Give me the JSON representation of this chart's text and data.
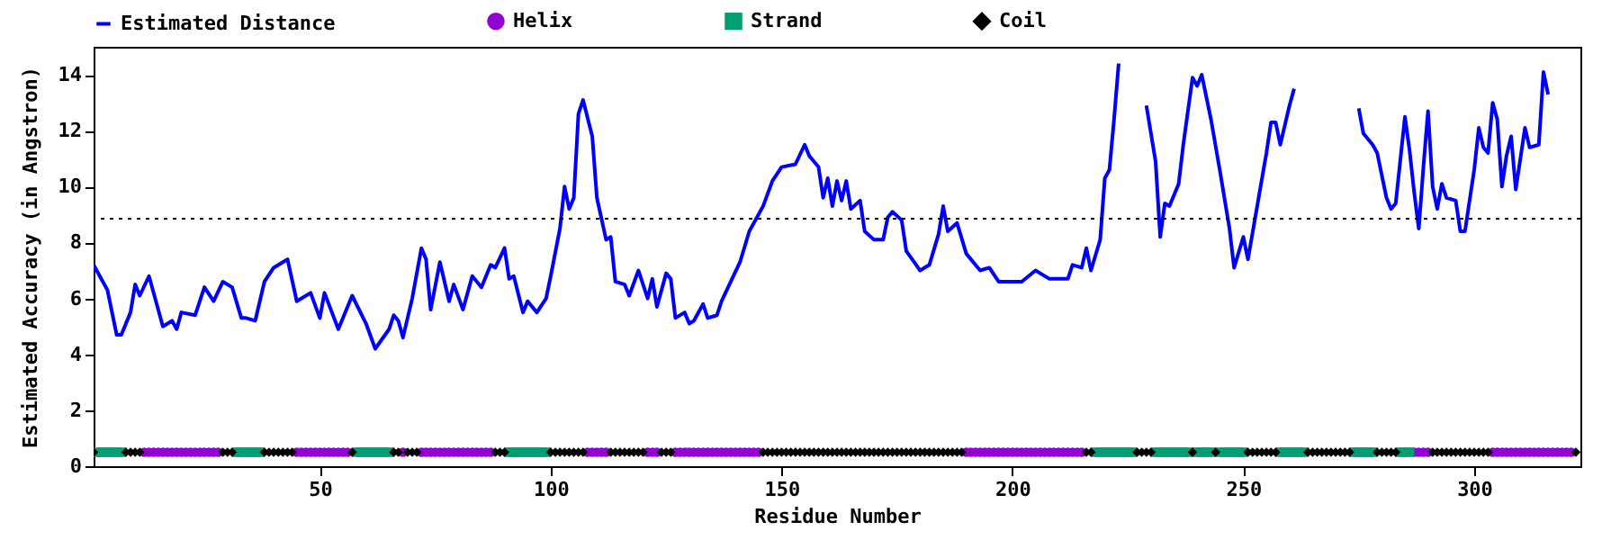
{
  "chart_data": {
    "type": "line",
    "xlabel": "Residue Number",
    "ylabel": "Estimated Accuracy (in Angstron)",
    "xlim": [
      1,
      323
    ],
    "xticks": [
      50,
      100,
      150,
      200,
      250,
      300
    ],
    "ylim": [
      0,
      15
    ],
    "yticks": [
      0,
      2,
      4,
      6,
      8,
      10,
      12,
      14
    ],
    "grid": false,
    "legend": "top",
    "ref_lines": [
      {
        "axis": "y",
        "value": 8.85,
        "color": "#000000",
        "line_style": "dotted"
      }
    ],
    "series": [
      {
        "name": "Estimated Distance",
        "type": "line",
        "color": "#0000ff",
        "line_style": "solid",
        "marker": "none",
        "x": [
          1,
          3,
          4,
          6,
          7,
          9,
          10,
          11,
          13,
          16,
          18,
          19,
          20,
          23,
          25,
          27,
          29,
          31,
          33,
          34,
          36,
          38,
          40,
          42,
          43,
          45,
          48,
          50,
          51,
          54,
          57,
          60,
          62,
          65,
          66,
          67,
          68,
          70,
          72,
          73,
          74,
          76,
          78,
          79,
          81,
          83,
          85,
          87,
          88,
          90,
          91,
          92,
          94,
          95,
          97,
          99,
          100,
          102,
          103,
          104,
          105,
          106,
          107,
          109,
          110,
          112,
          113,
          114,
          116,
          117,
          119,
          121,
          122,
          123,
          125,
          126,
          127,
          129,
          130,
          131,
          133,
          134,
          136,
          137,
          139,
          141,
          143,
          146,
          148,
          150,
          153,
          155,
          156,
          158,
          159,
          160,
          161,
          162,
          163,
          164,
          165,
          167,
          168,
          170,
          172,
          173,
          174,
          176,
          177,
          180,
          182,
          184,
          185,
          186,
          188,
          190,
          193,
          195,
          197,
          200,
          202,
          205,
          208,
          212,
          213,
          215,
          216,
          217,
          219,
          220,
          221,
          222,
          223,
          224,
          226,
          228,
          229,
          231,
          232,
          233,
          234,
          236,
          237,
          239,
          240,
          241,
          243,
          245,
          247,
          248,
          250,
          251,
          253,
          255,
          256,
          257,
          258,
          260,
          261,
          262,
          268,
          274,
          275,
          276,
          278,
          279,
          281,
          282,
          283,
          285,
          286,
          287,
          288,
          289,
          290,
          291,
          292,
          293,
          294,
          296,
          297,
          298,
          300,
          301,
          302,
          303,
          304,
          305,
          306,
          307,
          308,
          309,
          311,
          312,
          314,
          315,
          316
        ],
        "values": [
          7.2,
          6.6,
          6.3,
          4.7,
          4.7,
          5.5,
          6.5,
          6.1,
          6.8,
          5.0,
          5.2,
          4.9,
          5.5,
          5.4,
          6.4,
          5.9,
          6.6,
          6.4,
          5.3,
          5.3,
          5.2,
          6.6,
          7.1,
          7.3,
          7.4,
          5.9,
          6.2,
          5.3,
          6.2,
          4.9,
          6.1,
          5.1,
          4.2,
          4.9,
          5.4,
          5.2,
          4.6,
          6.0,
          7.8,
          7.4,
          5.6,
          7.3,
          5.9,
          6.5,
          5.6,
          6.8,
          6.4,
          7.2,
          7.1,
          7.8,
          6.7,
          6.8,
          5.5,
          5.9,
          5.5,
          6.0,
          6.8,
          8.5,
          10.0,
          9.2,
          9.6,
          12.6,
          13.1,
          11.8,
          9.6,
          8.1,
          8.2,
          6.6,
          6.5,
          6.1,
          7.0,
          6.0,
          6.7,
          5.7,
          6.9,
          6.7,
          5.3,
          5.5,
          5.1,
          5.2,
          5.8,
          5.3,
          5.4,
          5.9,
          6.6,
          7.3,
          8.4,
          9.3,
          10.2,
          10.7,
          10.8,
          11.5,
          11.1,
          10.7,
          9.6,
          10.3,
          9.3,
          10.2,
          9.5,
          10.2,
          9.2,
          9.5,
          8.4,
          8.1,
          8.1,
          8.9,
          9.1,
          8.8,
          7.7,
          7.0,
          7.2,
          8.3,
          9.3,
          8.4,
          8.7,
          7.6,
          7.0,
          7.1,
          6.6,
          6.6,
          6.6,
          7.0,
          6.7,
          6.7,
          7.2,
          7.1,
          7.8,
          7.0,
          8.1,
          10.3,
          10.6,
          12.4,
          14.4,
          null,
          null,
          null,
          12.9,
          10.9,
          8.2,
          9.4,
          9.3,
          10.1,
          11.5,
          13.9,
          13.6,
          14.0,
          12.4,
          10.5,
          8.5,
          7.1,
          8.2,
          7.4,
          9.3,
          11.2,
          12.3,
          12.3,
          11.5,
          12.9,
          13.5,
          null,
          null,
          null,
          12.8,
          11.9,
          11.5,
          11.2,
          9.6,
          9.2,
          9.4,
          12.5,
          11.3,
          9.8,
          8.5,
          10.7,
          12.7,
          10.0,
          9.2,
          10.1,
          9.6,
          9.5,
          8.4,
          8.4,
          10.6,
          12.1,
          11.4,
          11.2,
          13.0,
          12.4,
          10.0,
          11.1,
          11.8,
          9.9,
          12.1,
          11.4,
          11.5,
          14.1,
          13.3
        ]
      },
      {
        "name": "Helix",
        "type": "scatter",
        "color": "#9400d3",
        "marker": "circle",
        "x": [
          12,
          13,
          14,
          15,
          16,
          17,
          18,
          19,
          20,
          21,
          22,
          23,
          24,
          25,
          26,
          27,
          28,
          45,
          46,
          47,
          48,
          49,
          50,
          51,
          52,
          53,
          54,
          55,
          56,
          68,
          72,
          73,
          74,
          75,
          76,
          77,
          78,
          79,
          80,
          81,
          82,
          83,
          84,
          85,
          86,
          87,
          108,
          109,
          110,
          111,
          112,
          121,
          122,
          123,
          127,
          128,
          129,
          130,
          131,
          132,
          133,
          134,
          135,
          136,
          137,
          138,
          139,
          140,
          141,
          142,
          143,
          144,
          145,
          190,
          191,
          192,
          193,
          194,
          195,
          196,
          197,
          198,
          199,
          200,
          201,
          202,
          203,
          204,
          205,
          206,
          207,
          208,
          209,
          210,
          211,
          212,
          213,
          214,
          215,
          287,
          288,
          289,
          290,
          304,
          305,
          306,
          307,
          308,
          309,
          310,
          311,
          312,
          313,
          314,
          315,
          316,
          317,
          318,
          319,
          320,
          321
        ],
        "values": [
          0.5,
          0.5,
          0.5,
          0.5,
          0.5,
          0.5,
          0.5,
          0.5,
          0.5,
          0.5,
          0.5,
          0.5,
          0.5,
          0.5,
          0.5,
          0.5,
          0.5,
          0.5,
          0.5,
          0.5,
          0.5,
          0.5,
          0.5,
          0.5,
          0.5,
          0.5,
          0.5,
          0.5,
          0.5,
          0.5,
          0.5,
          0.5,
          0.5,
          0.5,
          0.5,
          0.5,
          0.5,
          0.5,
          0.5,
          0.5,
          0.5,
          0.5,
          0.5,
          0.5,
          0.5,
          0.5,
          0.5,
          0.5,
          0.5,
          0.5,
          0.5,
          0.5,
          0.5,
          0.5,
          0.5,
          0.5,
          0.5,
          0.5,
          0.5,
          0.5,
          0.5,
          0.5,
          0.5,
          0.5,
          0.5,
          0.5,
          0.5,
          0.5,
          0.5,
          0.5,
          0.5,
          0.5,
          0.5,
          0.5,
          0.5,
          0.5,
          0.5,
          0.5,
          0.5,
          0.5,
          0.5,
          0.5,
          0.5,
          0.5,
          0.5,
          0.5,
          0.5,
          0.5,
          0.5,
          0.5,
          0.5,
          0.5,
          0.5,
          0.5,
          0.5,
          0.5,
          0.5,
          0.5,
          0.5,
          0.5,
          0.5,
          0.5,
          0.5,
          0.5,
          0.5,
          0.5,
          0.5,
          0.5,
          0.5,
          0.5,
          0.5,
          0.5,
          0.5,
          0.5,
          0.5,
          0.5,
          0.5,
          0.5,
          0.5,
          0.5,
          0.5
        ]
      },
      {
        "name": "Strand",
        "type": "scatter",
        "color": "#009e73",
        "marker": "square",
        "x": [
          2,
          3,
          4,
          5,
          6,
          7,
          32,
          33,
          34,
          35,
          36,
          37,
          58,
          59,
          60,
          61,
          62,
          63,
          64,
          65,
          91,
          92,
          93,
          94,
          95,
          96,
          97,
          98,
          99,
          218,
          219,
          220,
          221,
          222,
          223,
          224,
          225,
          226,
          231,
          232,
          233,
          234,
          235,
          236,
          237,
          238,
          240,
          241,
          242,
          243,
          245,
          246,
          247,
          248,
          249,
          250,
          258,
          259,
          260,
          261,
          262,
          263,
          274,
          275,
          276,
          277,
          278,
          284,
          285,
          286
        ],
        "values": [
          0.5,
          0.5,
          0.5,
          0.5,
          0.5,
          0.5,
          0.5,
          0.5,
          0.5,
          0.5,
          0.5,
          0.5,
          0.5,
          0.5,
          0.5,
          0.5,
          0.5,
          0.5,
          0.5,
          0.5,
          0.5,
          0.5,
          0.5,
          0.5,
          0.5,
          0.5,
          0.5,
          0.5,
          0.5,
          0.5,
          0.5,
          0.5,
          0.5,
          0.5,
          0.5,
          0.5,
          0.5,
          0.5,
          0.5,
          0.5,
          0.5,
          0.5,
          0.5,
          0.5,
          0.5,
          0.5,
          0.5,
          0.5,
          0.5,
          0.5,
          0.5,
          0.5,
          0.5,
          0.5,
          0.5,
          0.5,
          0.5,
          0.5,
          0.5,
          0.5,
          0.5,
          0.5,
          0.5,
          0.5,
          0.5,
          0.5,
          0.5,
          0.5,
          0.5,
          0.5
        ]
      },
      {
        "name": "Coil",
        "type": "scatter",
        "color": "#000000",
        "marker": "diamond",
        "x": [
          1,
          8,
          9,
          10,
          11,
          29,
          30,
          31,
          38,
          39,
          40,
          41,
          42,
          43,
          44,
          57,
          66,
          67,
          69,
          70,
          71,
          88,
          89,
          90,
          100,
          101,
          102,
          103,
          104,
          105,
          106,
          107,
          113,
          114,
          115,
          116,
          117,
          118,
          119,
          120,
          124,
          125,
          126,
          146,
          147,
          148,
          149,
          150,
          151,
          152,
          153,
          154,
          155,
          156,
          157,
          158,
          159,
          160,
          161,
          162,
          163,
          164,
          165,
          166,
          167,
          168,
          169,
          170,
          171,
          172,
          173,
          174,
          175,
          176,
          177,
          178,
          179,
          180,
          181,
          182,
          183,
          184,
          185,
          186,
          187,
          188,
          189,
          216,
          217,
          227,
          228,
          229,
          230,
          239,
          244,
          251,
          252,
          253,
          254,
          255,
          256,
          257,
          264,
          265,
          266,
          267,
          268,
          269,
          270,
          271,
          272,
          273,
          279,
          280,
          281,
          282,
          283,
          291,
          292,
          293,
          294,
          295,
          296,
          297,
          298,
          299,
          300,
          301,
          302,
          303,
          322
        ],
        "values": [
          0.5,
          0.5,
          0.5,
          0.5,
          0.5,
          0.5,
          0.5,
          0.5,
          0.5,
          0.5,
          0.5,
          0.5,
          0.5,
          0.5,
          0.5,
          0.5,
          0.5,
          0.5,
          0.5,
          0.5,
          0.5,
          0.5,
          0.5,
          0.5,
          0.5,
          0.5,
          0.5,
          0.5,
          0.5,
          0.5,
          0.5,
          0.5,
          0.5,
          0.5,
          0.5,
          0.5,
          0.5,
          0.5,
          0.5,
          0.5,
          0.5,
          0.5,
          0.5,
          0.5,
          0.5,
          0.5,
          0.5,
          0.5,
          0.5,
          0.5,
          0.5,
          0.5,
          0.5,
          0.5,
          0.5,
          0.5,
          0.5,
          0.5,
          0.5,
          0.5,
          0.5,
          0.5,
          0.5,
          0.5,
          0.5,
          0.5,
          0.5,
          0.5,
          0.5,
          0.5,
          0.5,
          0.5,
          0.5,
          0.5,
          0.5,
          0.5,
          0.5,
          0.5,
          0.5,
          0.5,
          0.5,
          0.5,
          0.5,
          0.5,
          0.5,
          0.5,
          0.5,
          0.5,
          0.5,
          0.5,
          0.5,
          0.5,
          0.5,
          0.5,
          0.5,
          0.5,
          0.5,
          0.5,
          0.5,
          0.5,
          0.5,
          0.5,
          0.5,
          0.5,
          0.5,
          0.5,
          0.5,
          0.5,
          0.5,
          0.5,
          0.5,
          0.5,
          0.5,
          0.5,
          0.5,
          0.5,
          0.5,
          0.5,
          0.5,
          0.5,
          0.5,
          0.5,
          0.5,
          0.5,
          0.5,
          0.5,
          0.5,
          0.5,
          0.5,
          0.5,
          0.5
        ]
      }
    ]
  }
}
